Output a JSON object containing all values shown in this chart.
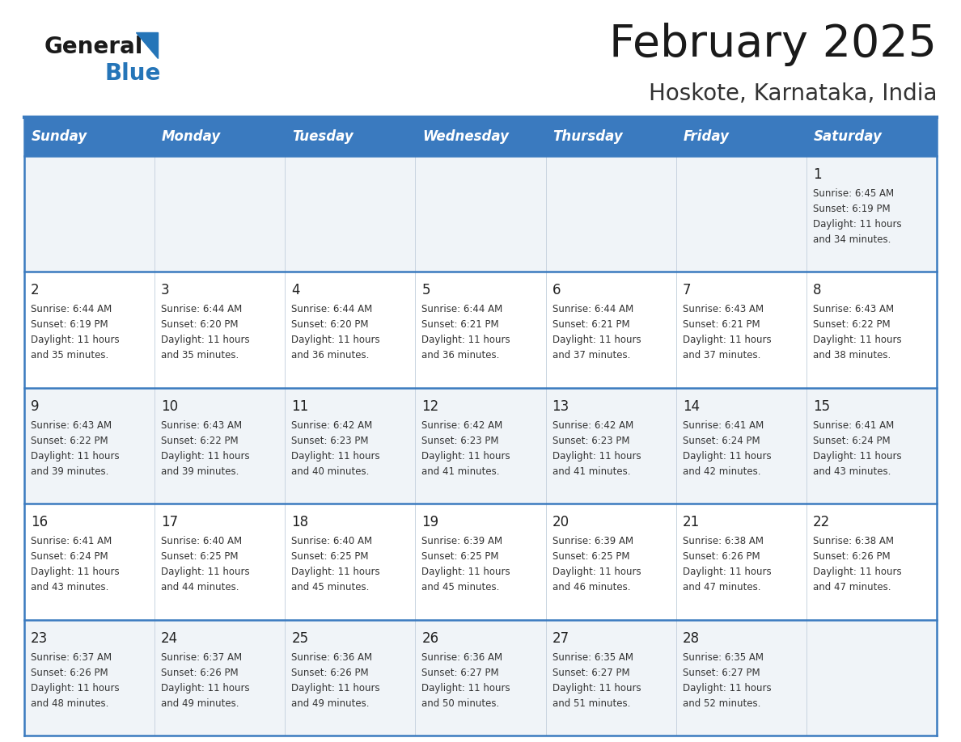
{
  "title": "February 2025",
  "subtitle": "Hoskote, Karnataka, India",
  "header_bg": "#3a7abf",
  "header_text_color": "#ffffff",
  "days_of_week": [
    "Sunday",
    "Monday",
    "Tuesday",
    "Wednesday",
    "Thursday",
    "Friday",
    "Saturday"
  ],
  "row_bg_colors": [
    "#f0f4f8",
    "#ffffff",
    "#f0f4f8",
    "#ffffff",
    "#f0f4f8"
  ],
  "border_color": "#3a7abf",
  "day_num_color": "#222222",
  "info_color": "#333333",
  "logo_general_color": "#1a1a1a",
  "logo_blue_color": "#2575b8",
  "calendar_data": [
    [
      null,
      null,
      null,
      null,
      null,
      null,
      {
        "day": "1",
        "sunrise": "6:45 AM",
        "sunset": "6:19 PM",
        "dl1": "Daylight: 11 hours",
        "dl2": "and 34 minutes."
      }
    ],
    [
      {
        "day": "2",
        "sunrise": "6:44 AM",
        "sunset": "6:19 PM",
        "dl1": "Daylight: 11 hours",
        "dl2": "and 35 minutes."
      },
      {
        "day": "3",
        "sunrise": "6:44 AM",
        "sunset": "6:20 PM",
        "dl1": "Daylight: 11 hours",
        "dl2": "and 35 minutes."
      },
      {
        "day": "4",
        "sunrise": "6:44 AM",
        "sunset": "6:20 PM",
        "dl1": "Daylight: 11 hours",
        "dl2": "and 36 minutes."
      },
      {
        "day": "5",
        "sunrise": "6:44 AM",
        "sunset": "6:21 PM",
        "dl1": "Daylight: 11 hours",
        "dl2": "and 36 minutes."
      },
      {
        "day": "6",
        "sunrise": "6:44 AM",
        "sunset": "6:21 PM",
        "dl1": "Daylight: 11 hours",
        "dl2": "and 37 minutes."
      },
      {
        "day": "7",
        "sunrise": "6:43 AM",
        "sunset": "6:21 PM",
        "dl1": "Daylight: 11 hours",
        "dl2": "and 37 minutes."
      },
      {
        "day": "8",
        "sunrise": "6:43 AM",
        "sunset": "6:22 PM",
        "dl1": "Daylight: 11 hours",
        "dl2": "and 38 minutes."
      }
    ],
    [
      {
        "day": "9",
        "sunrise": "6:43 AM",
        "sunset": "6:22 PM",
        "dl1": "Daylight: 11 hours",
        "dl2": "and 39 minutes."
      },
      {
        "day": "10",
        "sunrise": "6:43 AM",
        "sunset": "6:22 PM",
        "dl1": "Daylight: 11 hours",
        "dl2": "and 39 minutes."
      },
      {
        "day": "11",
        "sunrise": "6:42 AM",
        "sunset": "6:23 PM",
        "dl1": "Daylight: 11 hours",
        "dl2": "and 40 minutes."
      },
      {
        "day": "12",
        "sunrise": "6:42 AM",
        "sunset": "6:23 PM",
        "dl1": "Daylight: 11 hours",
        "dl2": "and 41 minutes."
      },
      {
        "day": "13",
        "sunrise": "6:42 AM",
        "sunset": "6:23 PM",
        "dl1": "Daylight: 11 hours",
        "dl2": "and 41 minutes."
      },
      {
        "day": "14",
        "sunrise": "6:41 AM",
        "sunset": "6:24 PM",
        "dl1": "Daylight: 11 hours",
        "dl2": "and 42 minutes."
      },
      {
        "day": "15",
        "sunrise": "6:41 AM",
        "sunset": "6:24 PM",
        "dl1": "Daylight: 11 hours",
        "dl2": "and 43 minutes."
      }
    ],
    [
      {
        "day": "16",
        "sunrise": "6:41 AM",
        "sunset": "6:24 PM",
        "dl1": "Daylight: 11 hours",
        "dl2": "and 43 minutes."
      },
      {
        "day": "17",
        "sunrise": "6:40 AM",
        "sunset": "6:25 PM",
        "dl1": "Daylight: 11 hours",
        "dl2": "and 44 minutes."
      },
      {
        "day": "18",
        "sunrise": "6:40 AM",
        "sunset": "6:25 PM",
        "dl1": "Daylight: 11 hours",
        "dl2": "and 45 minutes."
      },
      {
        "day": "19",
        "sunrise": "6:39 AM",
        "sunset": "6:25 PM",
        "dl1": "Daylight: 11 hours",
        "dl2": "and 45 minutes."
      },
      {
        "day": "20",
        "sunrise": "6:39 AM",
        "sunset": "6:25 PM",
        "dl1": "Daylight: 11 hours",
        "dl2": "and 46 minutes."
      },
      {
        "day": "21",
        "sunrise": "6:38 AM",
        "sunset": "6:26 PM",
        "dl1": "Daylight: 11 hours",
        "dl2": "and 47 minutes."
      },
      {
        "day": "22",
        "sunrise": "6:38 AM",
        "sunset": "6:26 PM",
        "dl1": "Daylight: 11 hours",
        "dl2": "and 47 minutes."
      }
    ],
    [
      {
        "day": "23",
        "sunrise": "6:37 AM",
        "sunset": "6:26 PM",
        "dl1": "Daylight: 11 hours",
        "dl2": "and 48 minutes."
      },
      {
        "day": "24",
        "sunrise": "6:37 AM",
        "sunset": "6:26 PM",
        "dl1": "Daylight: 11 hours",
        "dl2": "and 49 minutes."
      },
      {
        "day": "25",
        "sunrise": "6:36 AM",
        "sunset": "6:26 PM",
        "dl1": "Daylight: 11 hours",
        "dl2": "and 49 minutes."
      },
      {
        "day": "26",
        "sunrise": "6:36 AM",
        "sunset": "6:27 PM",
        "dl1": "Daylight: 11 hours",
        "dl2": "and 50 minutes."
      },
      {
        "day": "27",
        "sunrise": "6:35 AM",
        "sunset": "6:27 PM",
        "dl1": "Daylight: 11 hours",
        "dl2": "and 51 minutes."
      },
      {
        "day": "28",
        "sunrise": "6:35 AM",
        "sunset": "6:27 PM",
        "dl1": "Daylight: 11 hours",
        "dl2": "and 52 minutes."
      },
      null
    ]
  ]
}
